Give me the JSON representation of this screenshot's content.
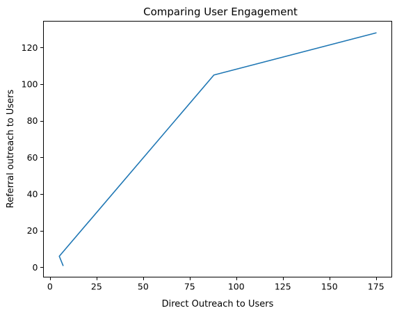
{
  "chart_data": {
    "type": "line",
    "title": "Comparing User Engagement",
    "xlabel": "Direct Outreach to Users",
    "ylabel": "Referral outreach to Users",
    "xlim": [
      -3.5,
      183.5
    ],
    "ylim": [
      -5.4,
      134.4
    ],
    "xticks": [
      0,
      25,
      50,
      75,
      100,
      125,
      150,
      175
    ],
    "yticks": [
      0,
      20,
      40,
      60,
      80,
      100,
      120
    ],
    "grid": false,
    "series": [
      {
        "x": [
          7,
          5,
          88,
          175
        ],
        "y": [
          1,
          6,
          105,
          128
        ],
        "color": "#1f77b4"
      }
    ]
  }
}
